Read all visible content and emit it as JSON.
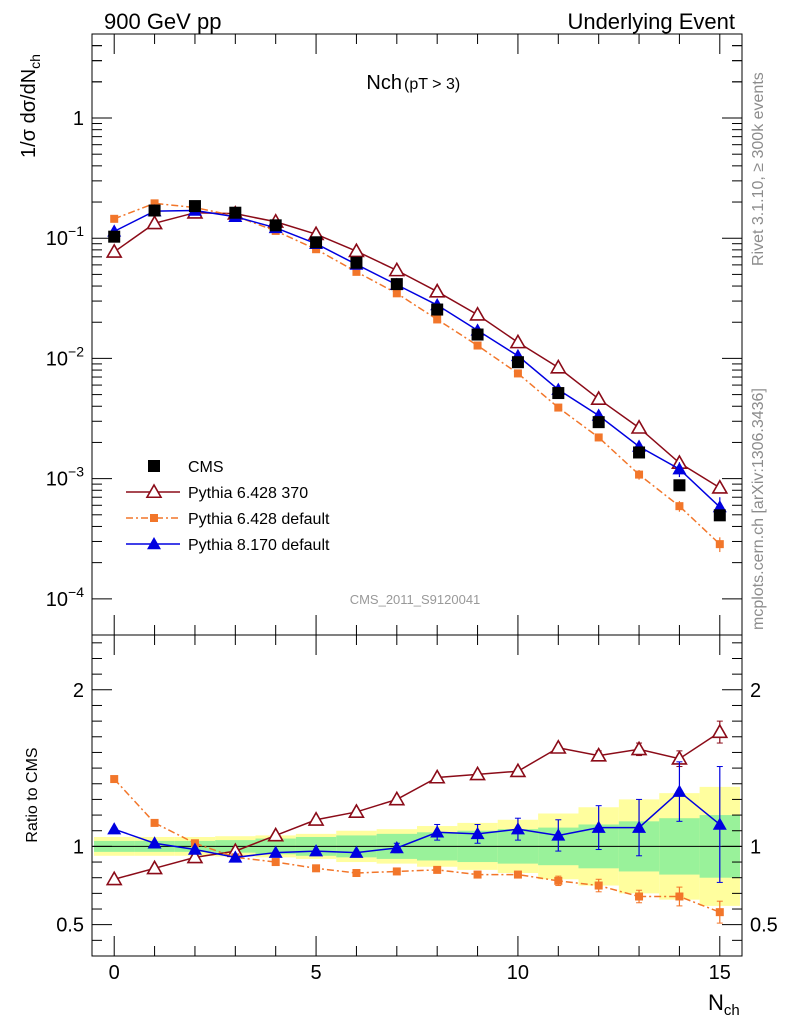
{
  "header": {
    "left": "900 GeV pp",
    "right": "Underlying Event"
  },
  "side": {
    "top": "Rivet 3.1.10, ≥ 300k events",
    "bottom": "mcplots.cern.ch [arXiv:1306.3436]"
  },
  "chart_data": [
    {
      "type": "scatter",
      "title": "Nch",
      "subtitle": "(pT >  3)",
      "watermark": "CMS_2011_S9120041",
      "ylabel_parts": [
        "1/σ dσ/dN",
        "ch"
      ],
      "yscale": "log",
      "ylim": [
        5e-05,
        5
      ],
      "xlim": [
        -0.55,
        15.55
      ],
      "ytick_labels": [
        {
          "value": 1,
          "mant": "1",
          "exp": ""
        },
        {
          "value": 0.1,
          "mant": "10",
          "exp": "−1"
        },
        {
          "value": 0.01,
          "mant": "10",
          "exp": "−2"
        },
        {
          "value": 0.001,
          "mant": "10",
          "exp": "−3"
        },
        {
          "value": 0.0001,
          "mant": "10",
          "exp": "−4"
        }
      ],
      "legend_position": "lower-left",
      "x": [
        0,
        1,
        2,
        3,
        4,
        5,
        6,
        7,
        8,
        9,
        10,
        11,
        12,
        13,
        14,
        15
      ],
      "series": [
        {
          "name": "CMS",
          "color": "#000000",
          "marker": "square",
          "line": "none",
          "values": [
            0.103,
            0.17,
            0.185,
            0.163,
            0.128,
            0.0925,
            0.0625,
            0.0415,
            0.0255,
            0.0158,
            0.0093,
            0.00515,
            0.00295,
            0.00165,
            0.00088,
            0.000495
          ],
          "err": [
            0.005,
            0.008,
            0.008,
            0.007,
            0.006,
            0.004,
            0.003,
            0.002,
            0.0013,
            0.0008,
            0.0005,
            0.0003,
            0.0002,
            0.00012,
            7e-05,
            5e-05
          ]
        },
        {
          "name": "Pythia 6.428 370",
          "color": "#8b0b18",
          "marker": "open-triangle",
          "line": "solid",
          "values": [
            0.077,
            0.133,
            0.163,
            0.16,
            0.137,
            0.108,
            0.078,
            0.054,
            0.036,
            0.0231,
            0.0136,
            0.0084,
            0.0046,
            0.00265,
            0.00135,
            0.00084
          ],
          "err": [
            0,
            0,
            0,
            0,
            0,
            0,
            0,
            0,
            0,
            0,
            0,
            0,
            0,
            0,
            8e-05,
            6e-05
          ]
        },
        {
          "name": "Pythia 6.428 default",
          "color": "#f2762a",
          "marker": "square-small",
          "line": "dashdot",
          "values": [
            0.145,
            0.195,
            0.18,
            0.153,
            0.115,
            0.081,
            0.0525,
            0.0348,
            0.0211,
            0.0128,
            0.0075,
            0.0039,
            0.0022,
            0.00108,
            0.00059,
            0.000285
          ],
          "err": [
            0,
            0,
            0,
            0,
            0,
            0,
            0,
            0,
            0,
            0,
            0,
            0,
            0.00015,
            0.0001,
            6e-05,
            4e-05
          ]
        },
        {
          "name": "Pythia 8.170 default",
          "color": "#0000e0",
          "marker": "filled-triangle",
          "line": "solid",
          "values": [
            0.114,
            0.168,
            0.17,
            0.151,
            0.122,
            0.09,
            0.0605,
            0.041,
            0.0278,
            0.0171,
            0.0105,
            0.0055,
            0.00335,
            0.00185,
            0.0012,
            0.00058
          ],
          "err": [
            0,
            0,
            0,
            0,
            0,
            0,
            0,
            0,
            0.0012,
            0.0008,
            0.0006,
            0.0004,
            0.0003,
            0.0002,
            0.00017,
            0.00012
          ]
        }
      ]
    },
    {
      "type": "scatter",
      "ylabel": "Ratio to CMS",
      "xlabel_parts": [
        "N",
        "ch"
      ],
      "ylim": [
        0.3,
        2.35
      ],
      "xlim": [
        -0.55,
        15.55
      ],
      "xtick_labels": [
        "0",
        "5",
        "10",
        "15"
      ],
      "xtick_values": [
        0,
        5,
        10,
        15
      ],
      "ytick_labels": [
        "2",
        "1",
        "0.5"
      ],
      "ytick_values": [
        2,
        1,
        0.5
      ],
      "reference_line": 1,
      "bands": {
        "inner_color": "#99f29a",
        "outer_color": "#fffe9e",
        "inner": [
          0.035,
          0.035,
          0.035,
          0.04,
          0.05,
          0.06,
          0.07,
          0.08,
          0.09,
          0.1,
          0.11,
          0.12,
          0.14,
          0.16,
          0.18,
          0.2
        ],
        "outer": [
          0.06,
          0.06,
          0.06,
          0.065,
          0.07,
          0.08,
          0.1,
          0.11,
          0.13,
          0.15,
          0.17,
          0.21,
          0.25,
          0.3,
          0.34,
          0.38
        ]
      },
      "series": [
        {
          "name": "Pythia 6.428 370",
          "values": [
            0.79,
            0.86,
            0.93,
            0.97,
            1.07,
            1.17,
            1.22,
            1.3,
            1.44,
            1.46,
            1.48,
            1.63,
            1.58,
            1.62,
            1.56,
            1.73
          ],
          "err": [
            0,
            0,
            0,
            0,
            0,
            0,
            0,
            0,
            0,
            0,
            0,
            0,
            0.03,
            0.04,
            0.05,
            0.07
          ]
        },
        {
          "name": "Pythia 6.428 default",
          "values": [
            1.43,
            1.15,
            1.02,
            0.93,
            0.9,
            0.86,
            0.83,
            0.84,
            0.85,
            0.82,
            0.82,
            0.78,
            0.75,
            0.68,
            0.68,
            0.58
          ],
          "err": [
            0,
            0,
            0,
            0,
            0,
            0,
            0,
            0,
            0.02,
            0.02,
            0.02,
            0.03,
            0.04,
            0.04,
            0.06,
            0.07
          ]
        },
        {
          "name": "Pythia 8.170 default",
          "values": [
            1.11,
            1.02,
            0.98,
            0.93,
            0.96,
            0.97,
            0.96,
            0.99,
            1.09,
            1.08,
            1.11,
            1.07,
            1.12,
            1.12,
            1.35,
            1.14
          ],
          "err": [
            0,
            0,
            0,
            0,
            0,
            0,
            0,
            0.03,
            0.05,
            0.06,
            0.07,
            0.1,
            0.14,
            0.18,
            0.19,
            0.37
          ]
        }
      ]
    }
  ]
}
